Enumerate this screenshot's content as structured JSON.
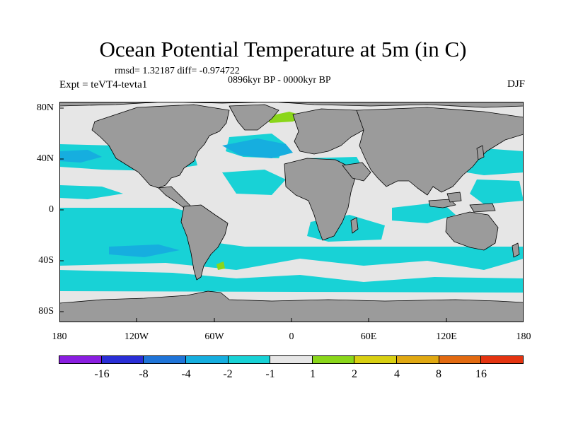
{
  "title": "Ocean Potential Temperature at 5m (in C)",
  "stats": "rmsd= 1.32187 diff= -0.974722",
  "period": "0896kyr BP - 0000kyr BP",
  "experiment": "Expt = teVT4-tevta1",
  "season": "DJF",
  "y_ticks": [
    "80N",
    "40N",
    "0",
    "40S",
    "80S"
  ],
  "x_ticks": [
    "180",
    "120W",
    "60W",
    "0",
    "60E",
    "120E",
    "180"
  ],
  "colorbar": {
    "labels": [
      "-16",
      "-8",
      "-4",
      "-2",
      "-1",
      "1",
      "2",
      "4",
      "8",
      "16"
    ],
    "colors": [
      "#8a1ee0",
      "#2a2ed6",
      "#1f74d8",
      "#16aedf",
      "#18d2d6",
      "#e6e6e6",
      "#8ad61a",
      "#d8cf12",
      "#e0a812",
      "#e26a10",
      "#e43410"
    ]
  },
  "map_colors": {
    "land": "#9b9b9b",
    "coast": "#000000",
    "neutral": "#e6e6e6",
    "cyan": "#18d2d6",
    "blue": "#16aedf",
    "green": "#8ad61a"
  }
}
